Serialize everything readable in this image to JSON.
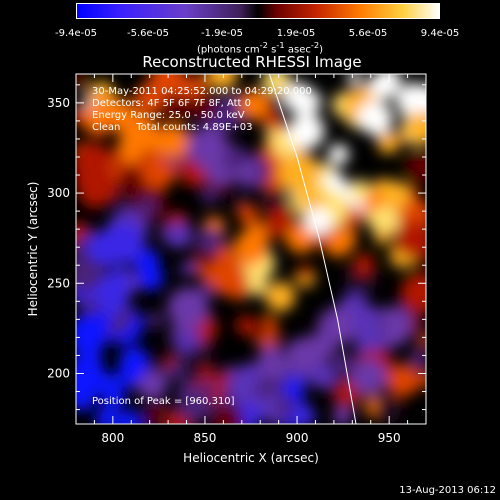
{
  "colorbar": {
    "tick_labels": [
      "-9.4e-05",
      "-5.6e-05",
      "-1.9e-05",
      "1.9e-05",
      "5.6e-05",
      "9.4e-05"
    ],
    "unit_html": "(photons cm<sup>-2</sup> s<sup>-1</sup> asec<sup>-2</sup>)"
  },
  "title": "Reconstructed RHESSI Image",
  "annotations": {
    "line1": "30-May-2011 04:25:52.000 to 04:29:20.000",
    "line2": "Detectors: 4F 5F 6F 7F 8F, Att 0",
    "line3": "Energy Range: 25.0 - 50.0 keV",
    "line4": "Clean     Total counts: 4.89E+03",
    "peak": "Position of Peak = [960,310]"
  },
  "footer": "13-Aug-2013 06:12",
  "chart_data": {
    "type": "heatmap",
    "title": "Reconstructed RHESSI Image",
    "xlabel": "Heliocentric X (arcsec)",
    "ylabel": "Heliocentric Y (arcsec)",
    "xlim": [
      780,
      970
    ],
    "ylim": [
      172,
      366
    ],
    "x_ticks": [
      800,
      850,
      900,
      950
    ],
    "y_ticks": [
      200,
      250,
      300,
      350
    ],
    "colorscale_range": [
      -9.4e-05,
      9.4e-05
    ],
    "limb_curve": [
      [
        885,
        366
      ],
      [
        900,
        320
      ],
      [
        912,
        275
      ],
      [
        922,
        230
      ],
      [
        932,
        172
      ]
    ],
    "peak_position": [
      960,
      310
    ]
  }
}
